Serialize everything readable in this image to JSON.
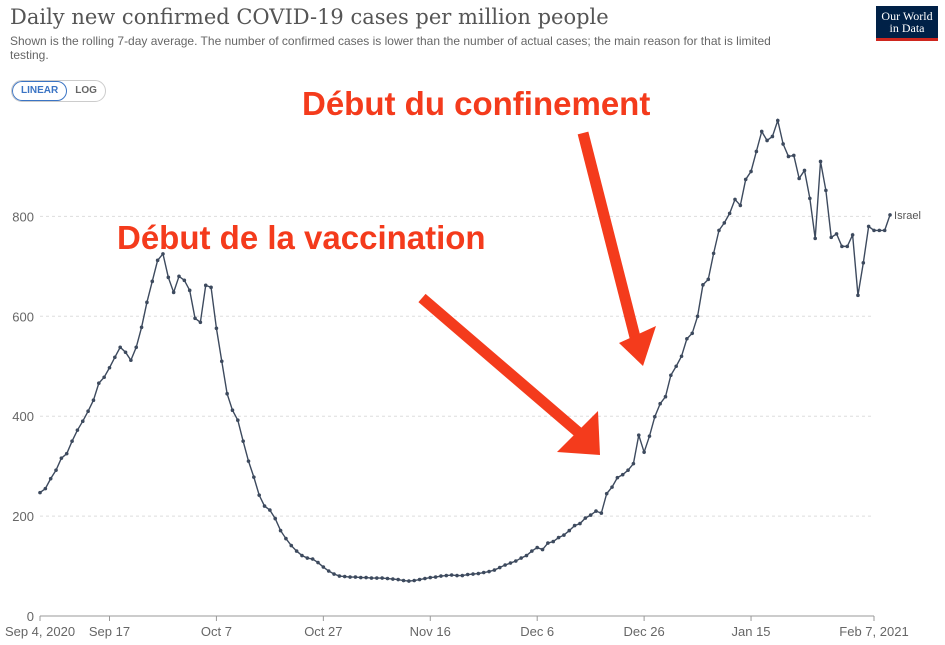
{
  "header": {
    "title": "Daily new confirmed COVID-19 cases per million people",
    "subtitle": "Shown is the rolling 7-day average. The number of confirmed cases is lower than the number of actual cases; the main reason for that is limited testing.",
    "logo_line1": "Our World",
    "logo_line2": "in Data"
  },
  "scale_toggle": {
    "linear_label": "LINEAR",
    "log_label": "LOG",
    "selected": "linear"
  },
  "annotations": {
    "vaccination": "Début de la vaccination",
    "lockdown": "Début du confinement"
  },
  "colors": {
    "line": "#3d4a5e",
    "annotation": "#f43b1c"
  },
  "chart_data": {
    "type": "line",
    "title": "Daily new confirmed COVID-19 cases per million people",
    "xlabel": "",
    "ylabel": "",
    "ylim": [
      0,
      1000
    ],
    "yticks": [
      0,
      200,
      400,
      600,
      800
    ],
    "grid": "horizontal dashed",
    "x_start": "2020-09-04",
    "x_end": "2021-02-07",
    "x_ticks": [
      {
        "label": "Sep 4, 2020",
        "day": 0
      },
      {
        "label": "Sep 17",
        "day": 13
      },
      {
        "label": "Oct 7",
        "day": 33
      },
      {
        "label": "Oct 27",
        "day": 53
      },
      {
        "label": "Nov 16",
        "day": 73
      },
      {
        "label": "Dec 6",
        "day": 93
      },
      {
        "label": "Dec 26",
        "day": 113
      },
      {
        "label": "Jan 15",
        "day": 133
      },
      {
        "label": "Feb 7, 2021",
        "day": 156
      }
    ],
    "series": [
      {
        "name": "Israel",
        "values": [
          247,
          255,
          275,
          292,
          316,
          325,
          350,
          372,
          390,
          410,
          432,
          466,
          478,
          497,
          518,
          538,
          528,
          512,
          538,
          578,
          628,
          670,
          712,
          725,
          678,
          648,
          680,
          672,
          652,
          596,
          588,
          662,
          658,
          576,
          510,
          445,
          412,
          392,
          350,
          310,
          278,
          242,
          220,
          212,
          195,
          171,
          155,
          141,
          130,
          121,
          116,
          114,
          107,
          98,
          90,
          84,
          80,
          79,
          78,
          78,
          77,
          77,
          76,
          76,
          76,
          75,
          74,
          73,
          71,
          70,
          71,
          73,
          75,
          77,
          78,
          80,
          81,
          82,
          81,
          81,
          83,
          84,
          85,
          87,
          89,
          92,
          97,
          102,
          106,
          110,
          116,
          121,
          130,
          137,
          133,
          146,
          149,
          157,
          162,
          171,
          181,
          185,
          196,
          202,
          210,
          206,
          245,
          258,
          277,
          283,
          292,
          305,
          362,
          328,
          360,
          399,
          425,
          439,
          482,
          500,
          520,
          555,
          566,
          600,
          663,
          674,
          726,
          772,
          787,
          806,
          834,
          822,
          874,
          890,
          930,
          970,
          952,
          960,
          992,
          945,
          920,
          922,
          876,
          892,
          836,
          756,
          910,
          852,
          758,
          765,
          740,
          740,
          763,
          642,
          707,
          780,
          772,
          772,
          772,
          803
        ]
      }
    ]
  }
}
